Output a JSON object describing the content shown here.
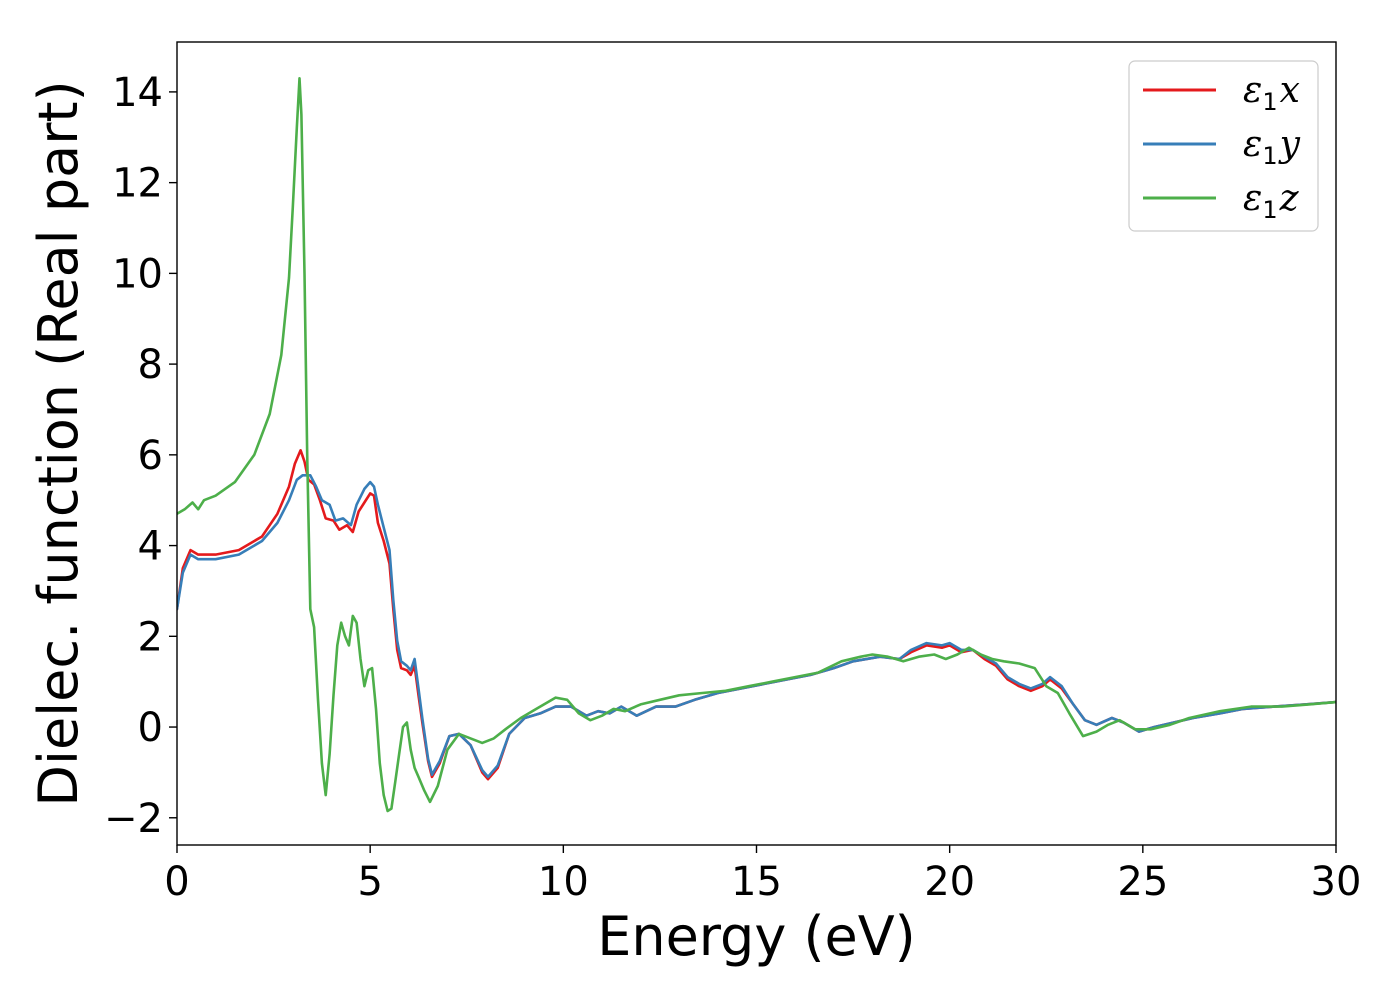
{
  "chart_data": {
    "type": "line",
    "title": "",
    "xlabel": "Energy (eV)",
    "ylabel": "Dielec. function (Real part)",
    "xlim": [
      0,
      30
    ],
    "ylim": [
      -2.6,
      15.1
    ],
    "xticks": [
      0,
      5,
      10,
      15,
      20,
      25,
      30
    ],
    "xtick_labels": [
      "0",
      "5",
      "10",
      "15",
      "20",
      "25",
      "30"
    ],
    "yticks": [
      -2,
      0,
      2,
      4,
      6,
      8,
      10,
      12,
      14
    ],
    "ytick_labels": [
      "−2",
      "0",
      "2",
      "4",
      "6",
      "8",
      "10",
      "12",
      "14"
    ],
    "grid": false,
    "legend_position": "top-right",
    "series": [
      {
        "name": "ε₁x",
        "label_base": "ε",
        "label_sub": "1",
        "label_var": "x",
        "color": "#e41a1c",
        "points": [
          [
            0,
            2.6
          ],
          [
            0.15,
            3.5
          ],
          [
            0.35,
            3.9
          ],
          [
            0.55,
            3.8
          ],
          [
            1.0,
            3.8
          ],
          [
            1.6,
            3.9
          ],
          [
            2.2,
            4.2
          ],
          [
            2.6,
            4.7
          ],
          [
            2.9,
            5.3
          ],
          [
            3.05,
            5.8
          ],
          [
            3.2,
            6.1
          ],
          [
            3.3,
            5.85
          ],
          [
            3.4,
            5.45
          ],
          [
            3.55,
            5.35
          ],
          [
            3.7,
            5.0
          ],
          [
            3.85,
            4.6
          ],
          [
            4.05,
            4.55
          ],
          [
            4.2,
            4.35
          ],
          [
            4.4,
            4.45
          ],
          [
            4.55,
            4.3
          ],
          [
            4.7,
            4.75
          ],
          [
            4.85,
            4.95
          ],
          [
            5.0,
            5.15
          ],
          [
            5.1,
            5.1
          ],
          [
            5.2,
            4.5
          ],
          [
            5.35,
            4.1
          ],
          [
            5.5,
            3.6
          ],
          [
            5.6,
            2.6
          ],
          [
            5.7,
            1.7
          ],
          [
            5.8,
            1.3
          ],
          [
            5.95,
            1.25
          ],
          [
            6.05,
            1.15
          ],
          [
            6.15,
            1.35
          ],
          [
            6.25,
            0.7
          ],
          [
            6.35,
            0.1
          ],
          [
            6.5,
            -0.75
          ],
          [
            6.6,
            -1.1
          ],
          [
            6.8,
            -0.8
          ],
          [
            7.05,
            -0.2
          ],
          [
            7.3,
            -0.15
          ],
          [
            7.6,
            -0.4
          ],
          [
            7.9,
            -1.0
          ],
          [
            8.05,
            -1.15
          ],
          [
            8.3,
            -0.9
          ],
          [
            8.6,
            -0.15
          ],
          [
            9.0,
            0.2
          ],
          [
            9.4,
            0.3
          ],
          [
            9.8,
            0.45
          ],
          [
            10.2,
            0.45
          ],
          [
            10.6,
            0.25
          ],
          [
            10.9,
            0.35
          ],
          [
            11.2,
            0.3
          ],
          [
            11.5,
            0.45
          ],
          [
            11.9,
            0.25
          ],
          [
            12.4,
            0.45
          ],
          [
            12.9,
            0.45
          ],
          [
            13.4,
            0.6
          ],
          [
            14.0,
            0.75
          ],
          [
            14.6,
            0.85
          ],
          [
            15.2,
            0.95
          ],
          [
            15.8,
            1.05
          ],
          [
            16.4,
            1.15
          ],
          [
            17.0,
            1.3
          ],
          [
            17.5,
            1.45
          ],
          [
            18.2,
            1.55
          ],
          [
            18.7,
            1.5
          ],
          [
            19.0,
            1.65
          ],
          [
            19.4,
            1.8
          ],
          [
            19.8,
            1.75
          ],
          [
            20.0,
            1.8
          ],
          [
            20.3,
            1.65
          ],
          [
            20.6,
            1.7
          ],
          [
            20.9,
            1.5
          ],
          [
            21.2,
            1.35
          ],
          [
            21.5,
            1.05
          ],
          [
            21.8,
            0.9
          ],
          [
            22.1,
            0.8
          ],
          [
            22.4,
            0.9
          ],
          [
            22.6,
            1.05
          ],
          [
            22.9,
            0.85
          ],
          [
            23.2,
            0.5
          ],
          [
            23.5,
            0.15
          ],
          [
            23.8,
            0.05
          ],
          [
            24.2,
            0.2
          ],
          [
            24.5,
            0.1
          ],
          [
            24.9,
            -0.1
          ],
          [
            25.3,
            0.0
          ],
          [
            25.8,
            0.1
          ],
          [
            26.3,
            0.2
          ],
          [
            27.0,
            0.3
          ],
          [
            27.6,
            0.4
          ],
          [
            28.4,
            0.45
          ],
          [
            29.2,
            0.5
          ],
          [
            30,
            0.55
          ]
        ]
      },
      {
        "name": "ε₁y",
        "label_base": "ε",
        "label_sub": "1",
        "label_var": "y",
        "color": "#377eb8",
        "points": [
          [
            0,
            2.6
          ],
          [
            0.15,
            3.4
          ],
          [
            0.35,
            3.8
          ],
          [
            0.55,
            3.7
          ],
          [
            1.0,
            3.7
          ],
          [
            1.6,
            3.8
          ],
          [
            2.2,
            4.1
          ],
          [
            2.6,
            4.5
          ],
          [
            2.9,
            5.0
          ],
          [
            3.1,
            5.45
          ],
          [
            3.25,
            5.55
          ],
          [
            3.45,
            5.55
          ],
          [
            3.6,
            5.3
          ],
          [
            3.75,
            5.0
          ],
          [
            3.95,
            4.9
          ],
          [
            4.1,
            4.55
          ],
          [
            4.3,
            4.6
          ],
          [
            4.5,
            4.45
          ],
          [
            4.65,
            4.9
          ],
          [
            4.85,
            5.25
          ],
          [
            5.0,
            5.4
          ],
          [
            5.1,
            5.3
          ],
          [
            5.2,
            4.9
          ],
          [
            5.35,
            4.4
          ],
          [
            5.5,
            3.9
          ],
          [
            5.6,
            2.8
          ],
          [
            5.7,
            1.9
          ],
          [
            5.8,
            1.45
          ],
          [
            5.95,
            1.35
          ],
          [
            6.05,
            1.25
          ],
          [
            6.15,
            1.5
          ],
          [
            6.25,
            0.85
          ],
          [
            6.35,
            0.2
          ],
          [
            6.5,
            -0.7
          ],
          [
            6.6,
            -1.05
          ],
          [
            6.8,
            -0.75
          ],
          [
            7.05,
            -0.2
          ],
          [
            7.3,
            -0.15
          ],
          [
            7.6,
            -0.4
          ],
          [
            7.9,
            -0.95
          ],
          [
            8.05,
            -1.1
          ],
          [
            8.3,
            -0.85
          ],
          [
            8.6,
            -0.15
          ],
          [
            9.0,
            0.2
          ],
          [
            9.4,
            0.3
          ],
          [
            9.8,
            0.45
          ],
          [
            10.2,
            0.45
          ],
          [
            10.6,
            0.25
          ],
          [
            10.9,
            0.35
          ],
          [
            11.2,
            0.3
          ],
          [
            11.5,
            0.45
          ],
          [
            11.9,
            0.25
          ],
          [
            12.4,
            0.45
          ],
          [
            12.9,
            0.45
          ],
          [
            13.4,
            0.6
          ],
          [
            14.0,
            0.75
          ],
          [
            14.6,
            0.85
          ],
          [
            15.2,
            0.95
          ],
          [
            15.8,
            1.05
          ],
          [
            16.4,
            1.15
          ],
          [
            17.0,
            1.3
          ],
          [
            17.5,
            1.45
          ],
          [
            18.2,
            1.55
          ],
          [
            18.7,
            1.5
          ],
          [
            19.0,
            1.7
          ],
          [
            19.4,
            1.85
          ],
          [
            19.8,
            1.8
          ],
          [
            20.0,
            1.85
          ],
          [
            20.3,
            1.7
          ],
          [
            20.6,
            1.7
          ],
          [
            20.9,
            1.55
          ],
          [
            21.2,
            1.4
          ],
          [
            21.5,
            1.1
          ],
          [
            21.8,
            0.95
          ],
          [
            22.1,
            0.85
          ],
          [
            22.4,
            0.95
          ],
          [
            22.6,
            1.1
          ],
          [
            22.9,
            0.9
          ],
          [
            23.2,
            0.5
          ],
          [
            23.5,
            0.15
          ],
          [
            23.8,
            0.05
          ],
          [
            24.2,
            0.2
          ],
          [
            24.5,
            0.1
          ],
          [
            24.9,
            -0.1
          ],
          [
            25.3,
            0.0
          ],
          [
            25.8,
            0.1
          ],
          [
            26.3,
            0.2
          ],
          [
            27.0,
            0.3
          ],
          [
            27.6,
            0.4
          ],
          [
            28.4,
            0.45
          ],
          [
            29.2,
            0.5
          ],
          [
            30,
            0.55
          ]
        ]
      },
      {
        "name": "ε₁z",
        "label_base": "ε",
        "label_sub": "1",
        "label_var": "z",
        "color": "#4daf4a",
        "points": [
          [
            0,
            4.7
          ],
          [
            0.2,
            4.8
          ],
          [
            0.4,
            4.95
          ],
          [
            0.55,
            4.8
          ],
          [
            0.7,
            5.0
          ],
          [
            1.0,
            5.1
          ],
          [
            1.5,
            5.4
          ],
          [
            2.0,
            6.0
          ],
          [
            2.4,
            6.9
          ],
          [
            2.7,
            8.2
          ],
          [
            2.9,
            9.9
          ],
          [
            3.0,
            11.5
          ],
          [
            3.1,
            13.2
          ],
          [
            3.17,
            14.3
          ],
          [
            3.22,
            13.5
          ],
          [
            3.3,
            10.0
          ],
          [
            3.37,
            6.0
          ],
          [
            3.45,
            2.6
          ],
          [
            3.55,
            2.2
          ],
          [
            3.65,
            0.6
          ],
          [
            3.75,
            -0.8
          ],
          [
            3.85,
            -1.5
          ],
          [
            3.95,
            -0.6
          ],
          [
            4.05,
            0.7
          ],
          [
            4.15,
            1.8
          ],
          [
            4.25,
            2.3
          ],
          [
            4.35,
            2.0
          ],
          [
            4.45,
            1.8
          ],
          [
            4.55,
            2.45
          ],
          [
            4.65,
            2.3
          ],
          [
            4.75,
            1.5
          ],
          [
            4.85,
            0.9
          ],
          [
            4.95,
            1.25
          ],
          [
            5.05,
            1.3
          ],
          [
            5.15,
            0.4
          ],
          [
            5.25,
            -0.8
          ],
          [
            5.35,
            -1.5
          ],
          [
            5.45,
            -1.85
          ],
          [
            5.55,
            -1.8
          ],
          [
            5.65,
            -1.2
          ],
          [
            5.75,
            -0.6
          ],
          [
            5.85,
            0.0
          ],
          [
            5.95,
            0.1
          ],
          [
            6.05,
            -0.5
          ],
          [
            6.15,
            -0.9
          ],
          [
            6.25,
            -1.1
          ],
          [
            6.4,
            -1.4
          ],
          [
            6.55,
            -1.65
          ],
          [
            6.75,
            -1.3
          ],
          [
            7.0,
            -0.5
          ],
          [
            7.3,
            -0.15
          ],
          [
            7.6,
            -0.25
          ],
          [
            7.9,
            -0.35
          ],
          [
            8.2,
            -0.25
          ],
          [
            8.5,
            -0.05
          ],
          [
            8.9,
            0.2
          ],
          [
            9.3,
            0.4
          ],
          [
            9.8,
            0.65
          ],
          [
            10.1,
            0.6
          ],
          [
            10.4,
            0.3
          ],
          [
            10.7,
            0.15
          ],
          [
            11.0,
            0.25
          ],
          [
            11.3,
            0.4
          ],
          [
            11.6,
            0.35
          ],
          [
            12.0,
            0.5
          ],
          [
            12.5,
            0.6
          ],
          [
            13.0,
            0.7
          ],
          [
            13.6,
            0.75
          ],
          [
            14.2,
            0.8
          ],
          [
            14.8,
            0.9
          ],
          [
            15.4,
            1.0
          ],
          [
            16.0,
            1.1
          ],
          [
            16.6,
            1.2
          ],
          [
            17.2,
            1.45
          ],
          [
            17.7,
            1.55
          ],
          [
            18.0,
            1.6
          ],
          [
            18.4,
            1.55
          ],
          [
            18.8,
            1.45
          ],
          [
            19.2,
            1.55
          ],
          [
            19.6,
            1.6
          ],
          [
            19.9,
            1.5
          ],
          [
            20.2,
            1.6
          ],
          [
            20.5,
            1.75
          ],
          [
            20.8,
            1.6
          ],
          [
            21.1,
            1.5
          ],
          [
            21.4,
            1.45
          ],
          [
            21.8,
            1.4
          ],
          [
            22.2,
            1.3
          ],
          [
            22.5,
            0.9
          ],
          [
            22.8,
            0.75
          ],
          [
            23.1,
            0.3
          ],
          [
            23.45,
            -0.2
          ],
          [
            23.8,
            -0.1
          ],
          [
            24.1,
            0.05
          ],
          [
            24.4,
            0.15
          ],
          [
            24.8,
            -0.05
          ],
          [
            25.2,
            -0.05
          ],
          [
            25.7,
            0.05
          ],
          [
            26.2,
            0.2
          ],
          [
            27.0,
            0.35
          ],
          [
            27.8,
            0.45
          ],
          [
            28.6,
            0.45
          ],
          [
            29.3,
            0.5
          ],
          [
            30,
            0.55
          ]
        ]
      }
    ]
  }
}
